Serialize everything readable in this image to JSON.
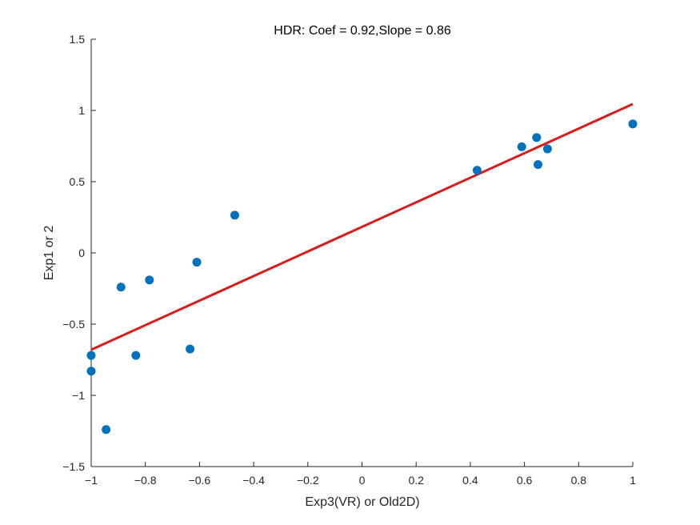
{
  "chart_data": {
    "type": "scatter",
    "title": "HDR: Coef = 0.92,Slope = 0.86",
    "xlabel": "Exp3(VR) or Old2D)",
    "ylabel": "Exp1 or 2",
    "xlim": [
      -1,
      1
    ],
    "ylim": [
      -1.5,
      1.5
    ],
    "xticks": [
      -1,
      -0.8,
      -0.6,
      -0.4,
      -0.2,
      0,
      0.2,
      0.4,
      0.6,
      0.8,
      1
    ],
    "xtick_labels": [
      "−1",
      "−0.8",
      "−0.6",
      "−0.4",
      "−0.2",
      "0",
      "0.2",
      "0.4",
      "0.6",
      "0.8",
      "1"
    ],
    "yticks": [
      -1.5,
      -1,
      -0.5,
      0,
      0.5,
      1,
      1.5
    ],
    "ytick_labels": [
      "−1.5",
      "−1",
      "−0.5",
      "0",
      "0.5",
      "1",
      "1.5"
    ],
    "grid": false,
    "points": {
      "x": [
        -1.0,
        -1.0,
        -0.945,
        -0.89,
        -0.835,
        -0.785,
        -0.635,
        -0.61,
        -0.47,
        0.425,
        0.59,
        0.645,
        0.65,
        0.685,
        1.0
      ],
      "y": [
        -0.72,
        -0.83,
        -1.24,
        -0.24,
        -0.72,
        -0.19,
        -0.675,
        -0.065,
        0.265,
        0.58,
        0.745,
        0.81,
        0.62,
        0.73,
        0.905
      ]
    },
    "fit_line": {
      "x": [
        -1,
        1
      ],
      "y": [
        -0.68,
        1.045
      ]
    },
    "colors": {
      "points": "#0072BD",
      "fit_line": "#D81B1B",
      "axes": "#262626"
    }
  }
}
